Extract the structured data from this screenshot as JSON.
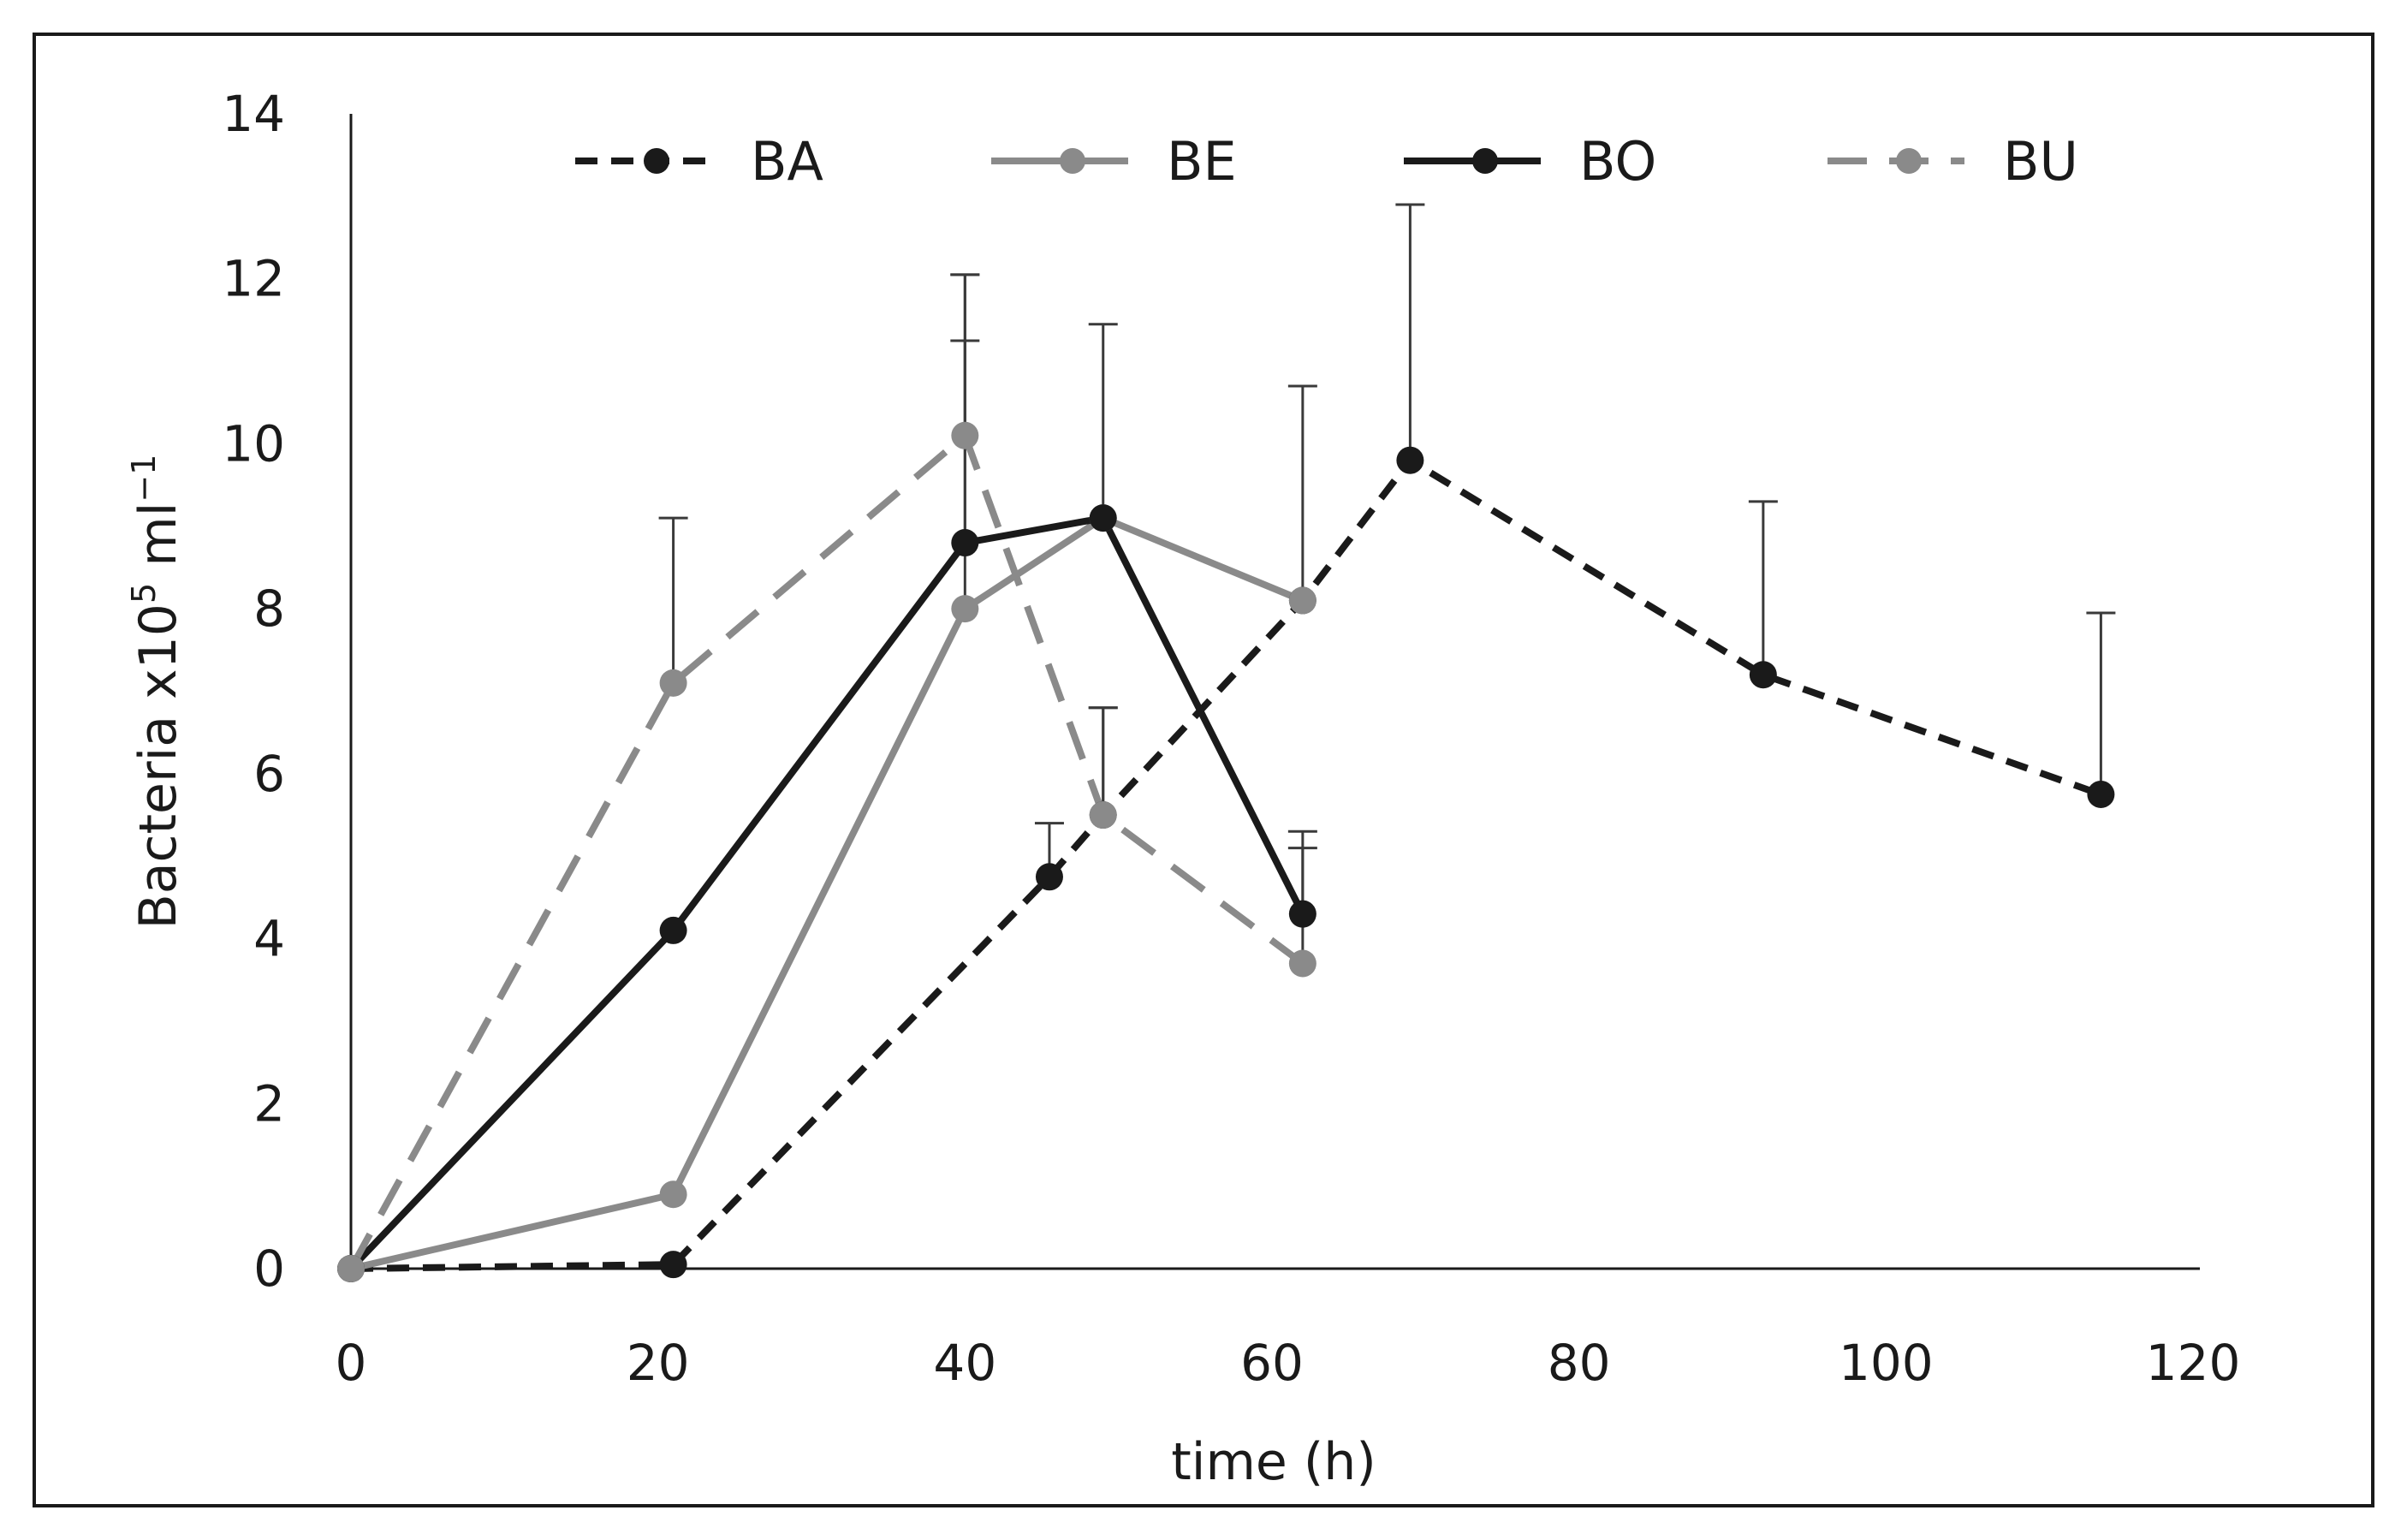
{
  "chart_data": {
    "type": "line",
    "title": "",
    "xlabel": "time (h)",
    "ylabel_parts": [
      "Bacteria x10",
      "5",
      " ml",
      "−1"
    ],
    "xlim": [
      0,
      120
    ],
    "ylim": [
      0,
      14
    ],
    "x_ticks": [
      0,
      20,
      40,
      60,
      80,
      100,
      120
    ],
    "y_ticks": [
      0,
      2,
      4,
      6,
      8,
      10,
      12,
      14
    ],
    "grid": false,
    "legend_position": "top",
    "series": [
      {
        "name": "BA",
        "color": "#1a1a1a",
        "dash": "short-dash",
        "x": [
          0,
          21,
          45.5,
          49,
          62,
          69,
          92,
          114
        ],
        "y": [
          0,
          0.05,
          4.75,
          5.5,
          8.1,
          9.8,
          7.2,
          5.75
        ],
        "err": [
          0,
          0,
          0.65,
          1.3,
          0,
          3.1,
          2.1,
          2.2
        ]
      },
      {
        "name": "BE",
        "color": "#8a8a8a",
        "dash": "solid",
        "x": [
          0,
          21,
          40,
          49,
          62
        ],
        "y": [
          0,
          0.9,
          8.0,
          9.1,
          8.1
        ],
        "err": [
          0,
          0,
          3.25,
          0,
          2.6
        ]
      },
      {
        "name": "BO",
        "color": "#1a1a1a",
        "dash": "solid",
        "x": [
          0,
          21,
          40,
          49,
          62
        ],
        "y": [
          0,
          4.1,
          8.8,
          9.1,
          4.3
        ],
        "err": [
          0,
          0,
          3.25,
          2.35,
          1.0
        ]
      },
      {
        "name": "BU",
        "color": "#8a8a8a",
        "dash": "long-dash",
        "x": [
          0,
          21,
          40,
          49,
          62
        ],
        "y": [
          0,
          7.1,
          10.1,
          5.5,
          3.7
        ],
        "err": [
          0,
          2.0,
          1.95,
          1.3,
          1.4
        ]
      }
    ]
  }
}
